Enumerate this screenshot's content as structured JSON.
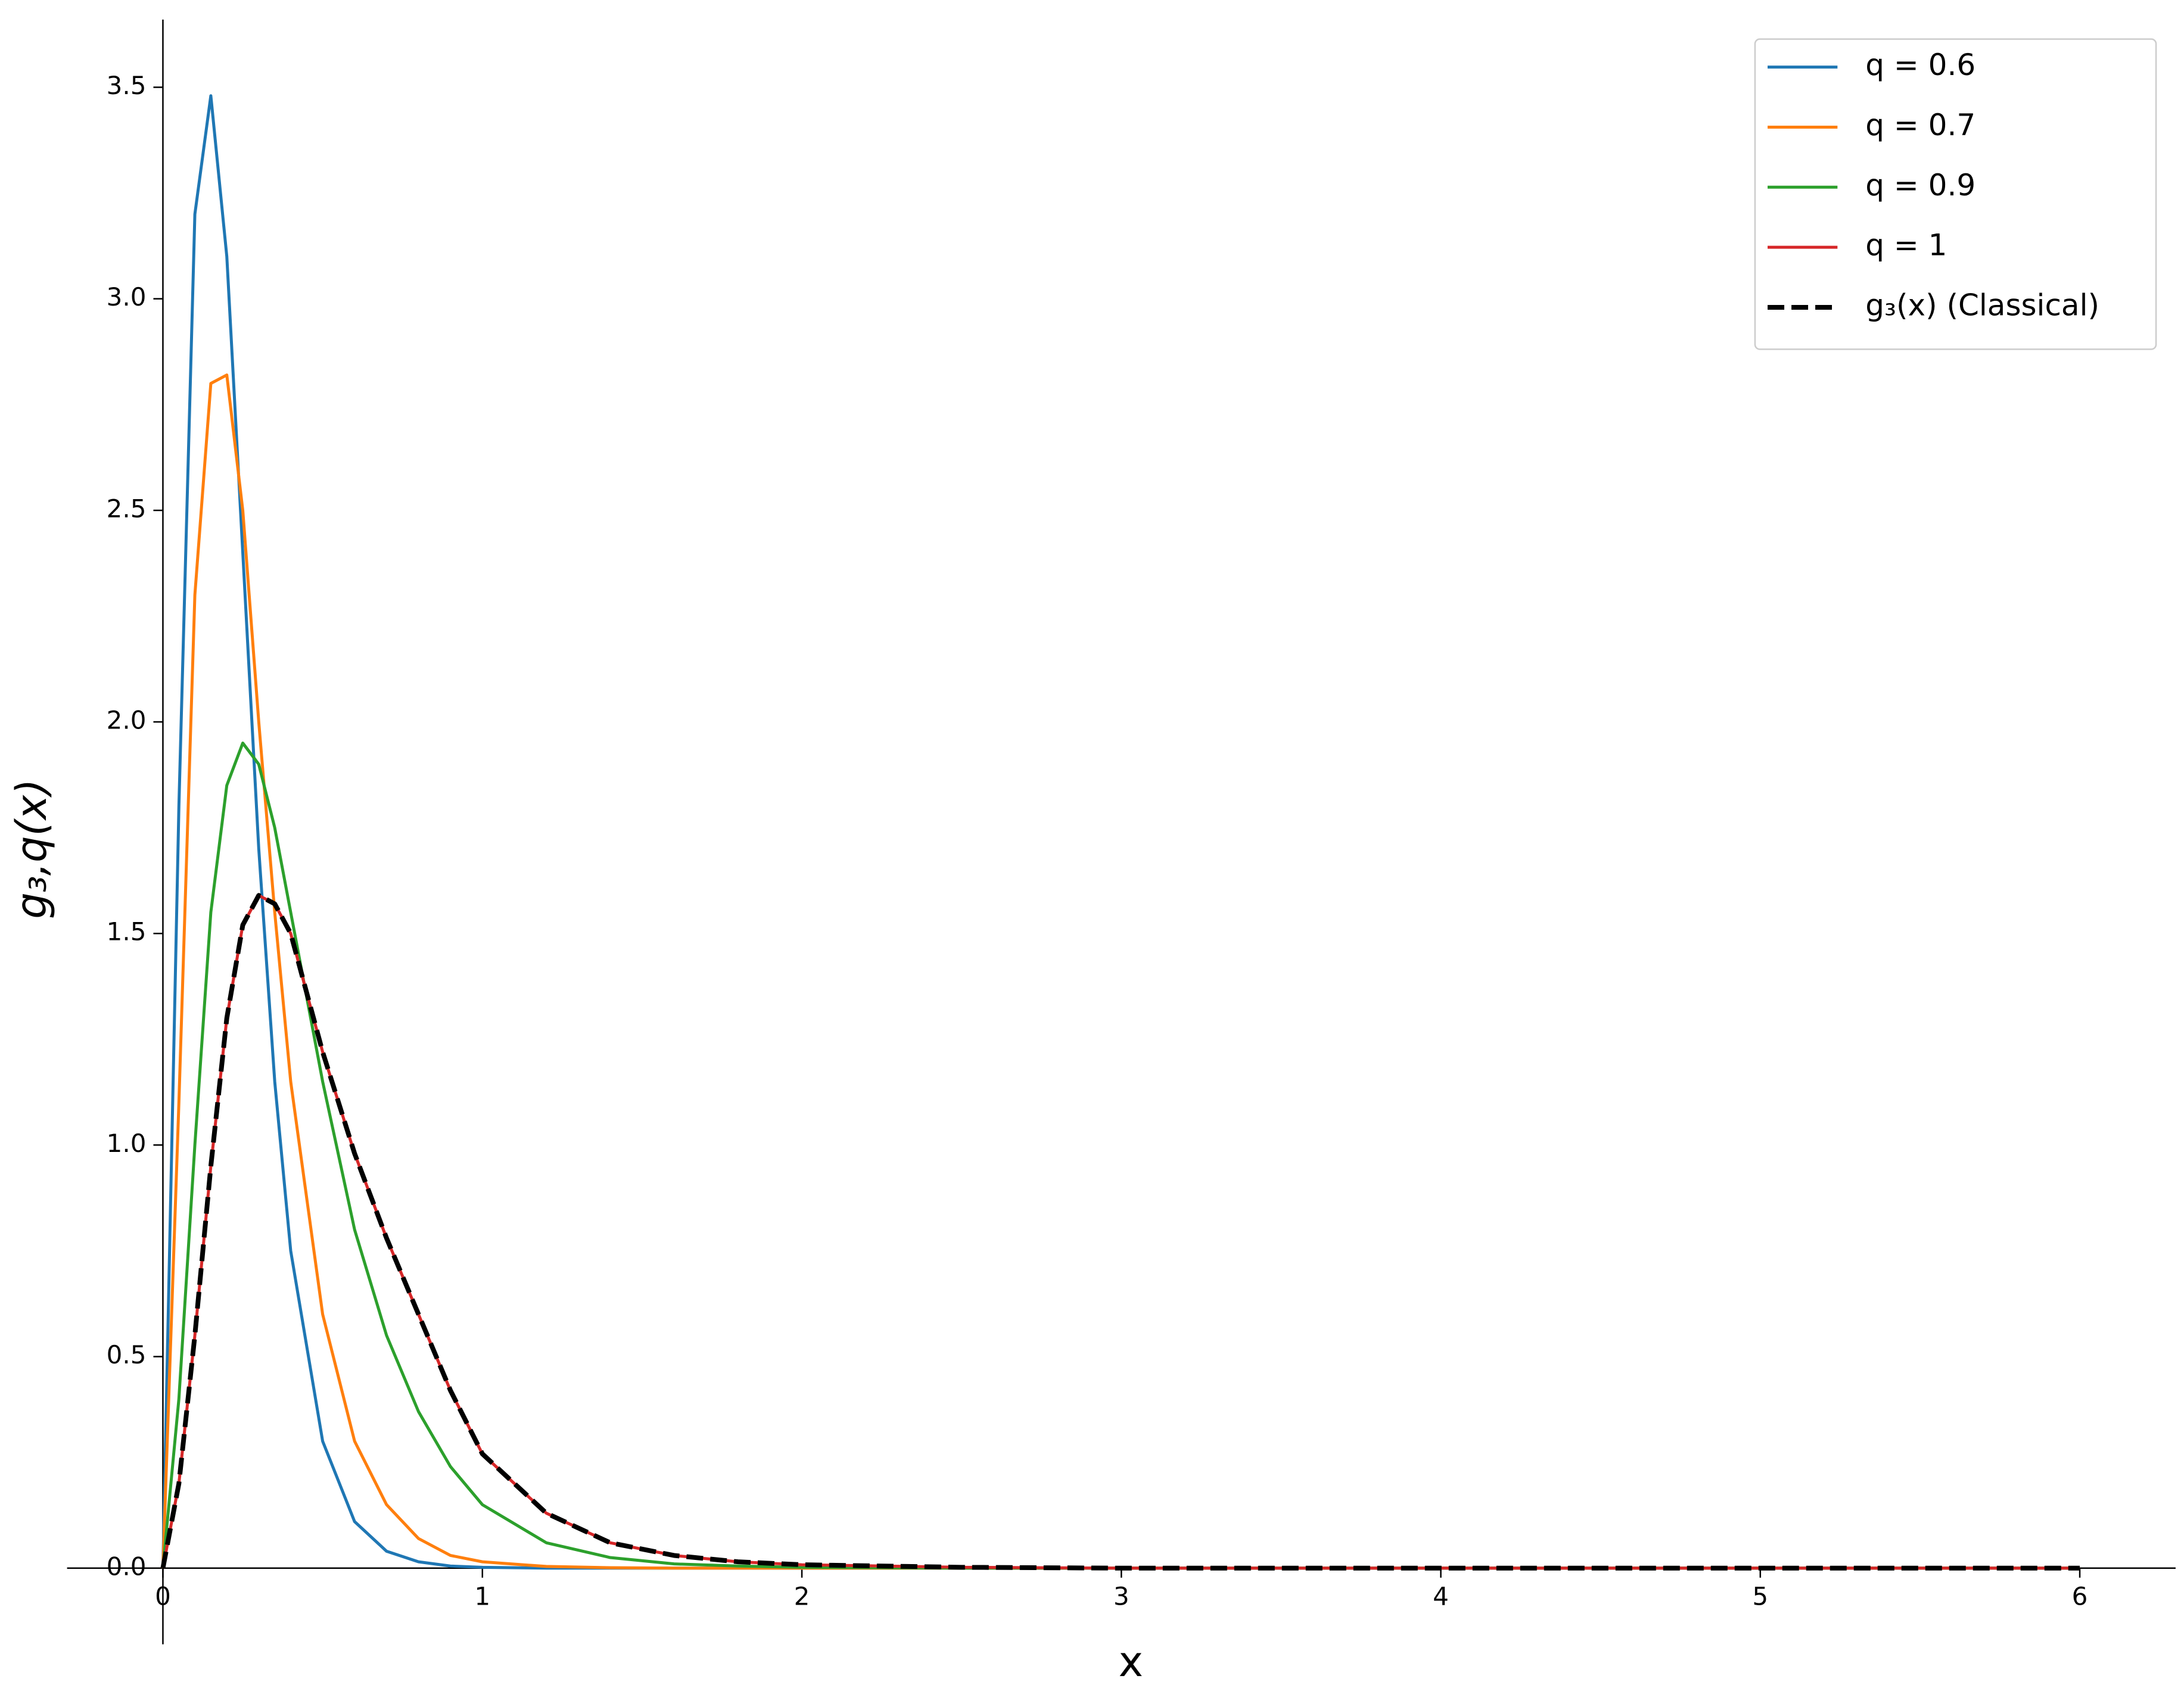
{
  "chart_data": {
    "type": "line",
    "xlabel": "x",
    "ylabel": "g₃,q(x)",
    "x": [
      0,
      0.05,
      0.1,
      0.15,
      0.2,
      0.25,
      0.3,
      0.35,
      0.4,
      0.5,
      0.6,
      0.7,
      0.8,
      0.9,
      1.0,
      1.2,
      1.4,
      1.6,
      1.8,
      2.0,
      2.5,
      3,
      4,
      5,
      6
    ],
    "series": [
      {
        "name": "q = 0.6",
        "color": "#1f77b4",
        "linestyle": "solid",
        "values": [
          0,
          1.8,
          3.2,
          3.48,
          3.1,
          2.4,
          1.7,
          1.15,
          0.75,
          0.3,
          0.11,
          0.04,
          0.015,
          0.005,
          0.002,
          0,
          0,
          0,
          0,
          0,
          0,
          0,
          0,
          0,
          0
        ]
      },
      {
        "name": "q = 0.7",
        "color": "#ff7f0e",
        "linestyle": "solid",
        "values": [
          0,
          1.1,
          2.3,
          2.8,
          2.82,
          2.5,
          2.0,
          1.55,
          1.15,
          0.6,
          0.3,
          0.15,
          0.07,
          0.03,
          0.015,
          0.004,
          0.001,
          0,
          0,
          0,
          0,
          0,
          0,
          0,
          0
        ]
      },
      {
        "name": "q = 0.9",
        "color": "#2ca02c",
        "linestyle": "solid",
        "values": [
          0,
          0.4,
          1.0,
          1.55,
          1.85,
          1.95,
          1.9,
          1.75,
          1.55,
          1.15,
          0.8,
          0.55,
          0.37,
          0.24,
          0.15,
          0.06,
          0.025,
          0.01,
          0.005,
          0.002,
          0,
          0,
          0,
          0,
          0
        ]
      },
      {
        "name": "q = 1",
        "color": "#d62728",
        "linestyle": "solid",
        "values": [
          0,
          0.2,
          0.55,
          0.95,
          1.3,
          1.52,
          1.59,
          1.57,
          1.5,
          1.22,
          0.98,
          0.78,
          0.6,
          0.42,
          0.27,
          0.13,
          0.06,
          0.03,
          0.015,
          0.008,
          0.002,
          0,
          0,
          0,
          0
        ]
      },
      {
        "name": "g₃(x) (Classical)",
        "color": "#000000",
        "linestyle": "dashed",
        "values": [
          0,
          0.2,
          0.55,
          0.95,
          1.3,
          1.52,
          1.59,
          1.57,
          1.5,
          1.22,
          0.98,
          0.78,
          0.6,
          0.42,
          0.27,
          0.13,
          0.06,
          0.03,
          0.015,
          0.008,
          0.002,
          0,
          0,
          0,
          0
        ]
      }
    ],
    "xlim": [
      -0.3,
      6.3
    ],
    "ylim": [
      -0.18,
      3.66
    ],
    "xticks": [
      0,
      1,
      2,
      3,
      4,
      5,
      6
    ],
    "yticks": [
      {
        "value": 0,
        "label": "0.0"
      },
      0.5,
      {
        "value": 1,
        "label": "1.0"
      },
      1.5,
      {
        "value": 2,
        "label": "2.0"
      },
      2.5,
      {
        "value": 3,
        "label": "3.0"
      },
      3.5
    ],
    "legend": "upper right",
    "grid": false
  }
}
